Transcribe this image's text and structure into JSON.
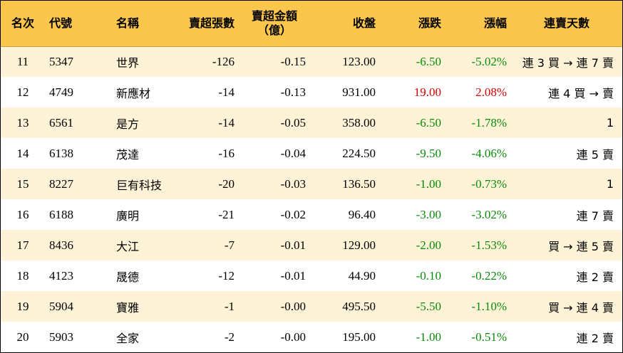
{
  "colors": {
    "header_bg": "#fbc64c",
    "row_alt_bg": "#fff3d7",
    "up": "#d90000",
    "down": "#0a8a0a"
  },
  "headers": {
    "rank": "名次",
    "code": "代號",
    "name": "名稱",
    "sell_lots": "賣超張數",
    "sell_amount_line1": "賣超金額",
    "sell_amount_line2": "（億）",
    "close": "收盤",
    "change": "漲跌",
    "change_pct": "漲幅",
    "streak": "連賣天數"
  },
  "rows": [
    {
      "rank": "11",
      "code": "5347",
      "name": "世界",
      "sell_lots": "-126",
      "sell_amount": "-0.15",
      "close": "123.00",
      "change": "-6.50",
      "change_pct": "-5.02%",
      "direction": "down",
      "streak": "連 3 買 → 連 7 賣"
    },
    {
      "rank": "12",
      "code": "4749",
      "name": "新應材",
      "sell_lots": "-14",
      "sell_amount": "-0.13",
      "close": "931.00",
      "change": "19.00",
      "change_pct": "2.08%",
      "direction": "up",
      "streak": "連 4 買 → 賣"
    },
    {
      "rank": "13",
      "code": "6561",
      "name": "是方",
      "sell_lots": "-14",
      "sell_amount": "-0.05",
      "close": "358.00",
      "change": "-6.50",
      "change_pct": "-1.78%",
      "direction": "down",
      "streak": "1"
    },
    {
      "rank": "14",
      "code": "6138",
      "name": "茂達",
      "sell_lots": "-16",
      "sell_amount": "-0.04",
      "close": "224.50",
      "change": "-9.50",
      "change_pct": "-4.06%",
      "direction": "down",
      "streak": "連 5 賣"
    },
    {
      "rank": "15",
      "code": "8227",
      "name": "巨有科技",
      "sell_lots": "-20",
      "sell_amount": "-0.03",
      "close": "136.50",
      "change": "-1.00",
      "change_pct": "-0.73%",
      "direction": "down",
      "streak": "1"
    },
    {
      "rank": "16",
      "code": "6188",
      "name": "廣明",
      "sell_lots": "-21",
      "sell_amount": "-0.02",
      "close": "96.40",
      "change": "-3.00",
      "change_pct": "-3.02%",
      "direction": "down",
      "streak": "連 7 賣"
    },
    {
      "rank": "17",
      "code": "8436",
      "name": "大江",
      "sell_lots": "-7",
      "sell_amount": "-0.01",
      "close": "129.00",
      "change": "-2.00",
      "change_pct": "-1.53%",
      "direction": "down",
      "streak": "買 → 連 5 賣"
    },
    {
      "rank": "18",
      "code": "4123",
      "name": "晟德",
      "sell_lots": "-12",
      "sell_amount": "-0.01",
      "close": "44.90",
      "change": "-0.10",
      "change_pct": "-0.22%",
      "direction": "down",
      "streak": "連 2 賣"
    },
    {
      "rank": "19",
      "code": "5904",
      "name": "寶雅",
      "sell_lots": "-1",
      "sell_amount": "-0.00",
      "close": "495.50",
      "change": "-5.50",
      "change_pct": "-1.10%",
      "direction": "down",
      "streak": "買 → 連 4 賣"
    },
    {
      "rank": "20",
      "code": "5903",
      "name": "全家",
      "sell_lots": "-2",
      "sell_amount": "-0.00",
      "close": "195.00",
      "change": "-1.00",
      "change_pct": "-0.51%",
      "direction": "down",
      "streak": "連 2 賣"
    }
  ]
}
